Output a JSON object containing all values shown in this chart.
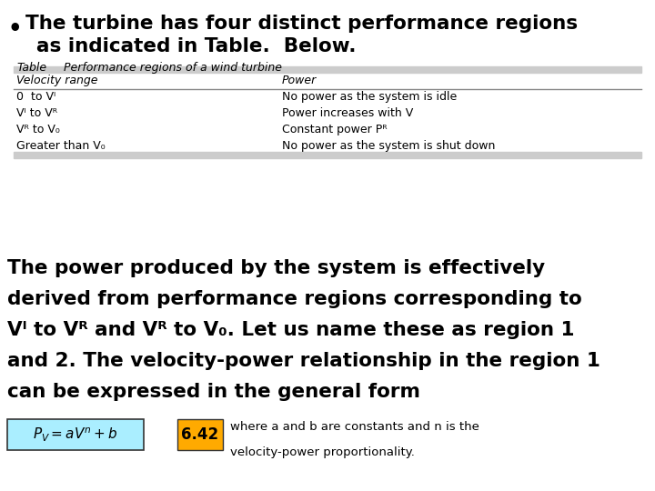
{
  "background_color": "#ffffff",
  "bullet_char": "•",
  "bullet_line1": "The turbine has four distinct performance regions",
  "bullet_line2": "as indicated in Table.  Below.",
  "table_caption_label": "Table",
  "table_caption_title": "Performance regions of a wind turbine",
  "table_header_col1": "Velocity range",
  "table_header_col2": "Power",
  "table_rows_col1": [
    "0  to V_I",
    "V_I to V_R",
    "V_R to V_O",
    "Greater than V_O"
  ],
  "table_rows_col2": [
    "No power as the system is idle",
    "Power increases with V",
    "Constant power P_R",
    "No power as the system is shut down"
  ],
  "body_lines": [
    "The power produced by the system is effectively",
    "derived from performance regions corresponding to",
    "V_I to V_R and V_R to V_O. Let us name these as region 1",
    "and 2. The velocity-power relationship in the region 1",
    "can be expressed in the general form"
  ],
  "formula_bg": "#aaeeff",
  "eq_number": "6.42",
  "eq_number_bg": "#ffaa00",
  "footnote_line1": "where a and b are constants and n is the",
  "footnote_line2": "velocity-power proportionality.",
  "table_line_color": "#888888",
  "table_fill_color": "#cccccc",
  "body_font_size": 15.5,
  "bullet_font_size": 15.5,
  "caption_font_size": 9.0,
  "table_font_size": 9.0,
  "formula_font_size": 11.0,
  "footnote_font_size": 9.5
}
